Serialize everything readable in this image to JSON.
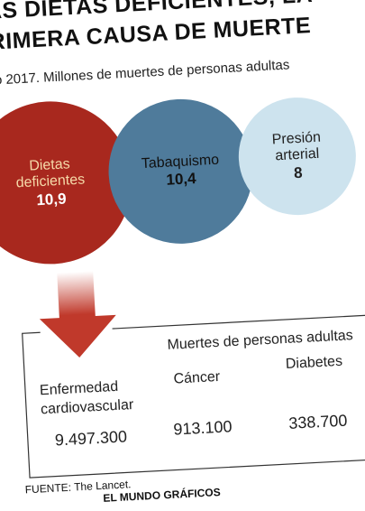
{
  "header": {
    "title_line1": "AS DIETAS DEFICIENTES, LA",
    "title_line2": "RIMERA CAUSA DE MUERTE",
    "subtitle": "o 2017. Millones de muertes de personas adultas"
  },
  "bubbles": [
    {
      "label": "Dietas deficientes",
      "value": "10,9"
    },
    {
      "label": "Tabaquismo",
      "value": "10,4"
    },
    {
      "label": "Presión arterial",
      "value": "8"
    }
  ],
  "table": {
    "heading": "Muertes de personas adultas",
    "columns": [
      {
        "label": "Enfermedad cardiovascular",
        "value": "9.497.300"
      },
      {
        "label": "Cáncer",
        "value": "913.100"
      },
      {
        "label": "Diabetes",
        "value": "338.700"
      }
    ]
  },
  "footer": {
    "source": "FUENTE: The Lancet.",
    "credit": "EL MUNDO GRÁFICOS"
  }
}
